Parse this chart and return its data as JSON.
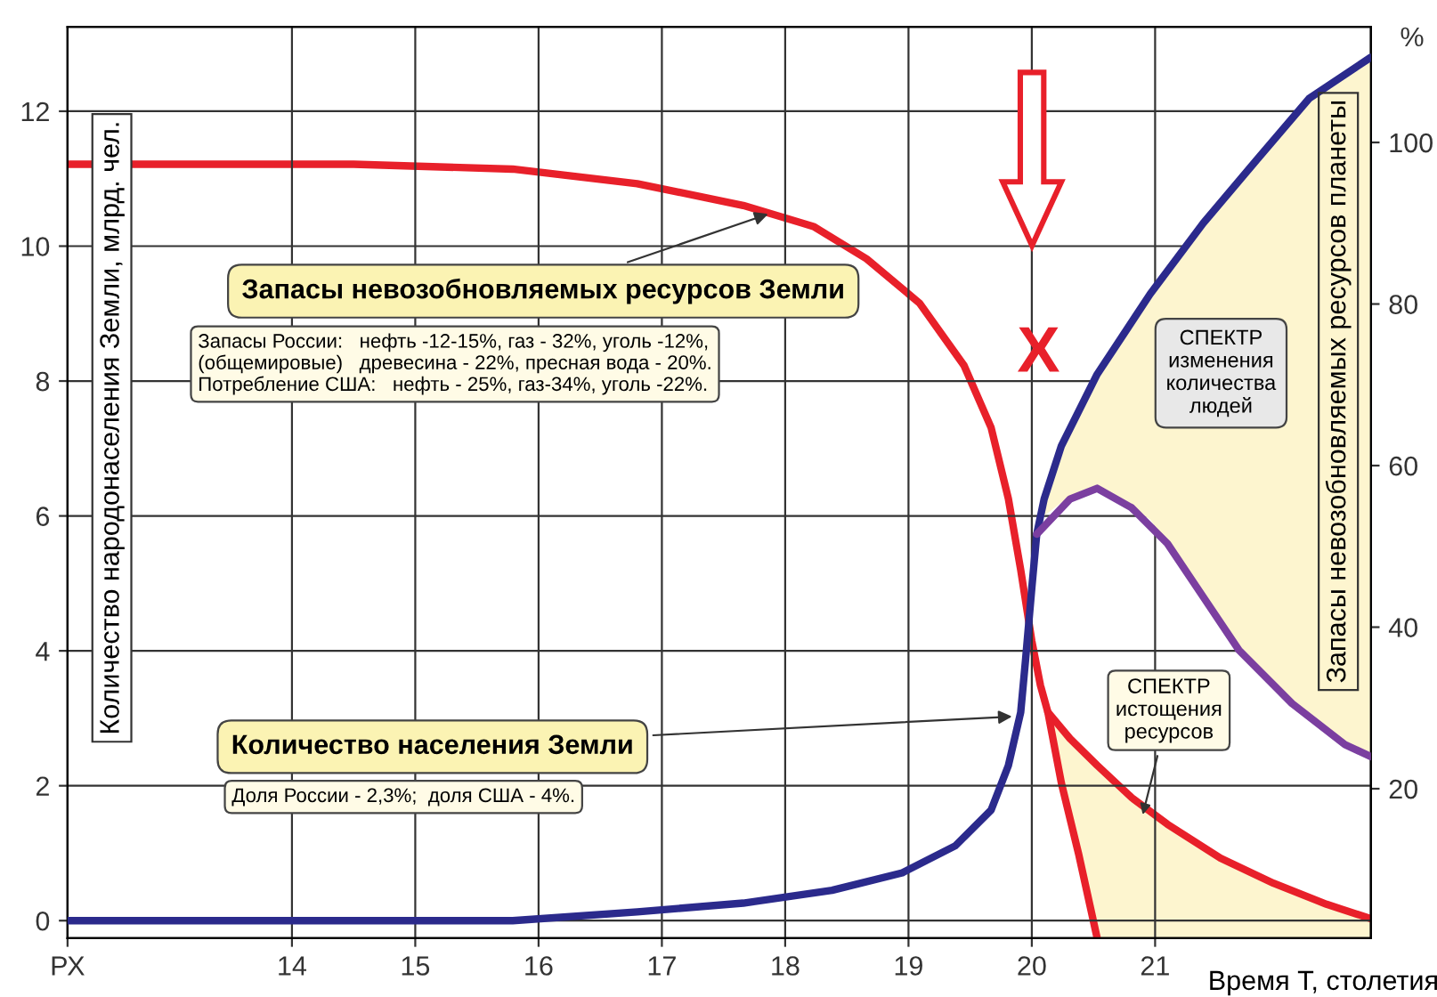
{
  "chart_data": {
    "type": "line",
    "xlabel": "Время Т, столетия",
    "ylabel": "Количество народонаселения Земли, млрд. чел.",
    "y2label": "Запасы невозобновляемых ресурсов планеты",
    "xlim": [
      12.18,
      22.75
    ],
    "xticks": [
      {
        "value": 12.18,
        "label": "РХ"
      },
      14,
      15,
      16,
      17,
      18,
      19,
      20,
      21
    ],
    "ylim": [
      -0.26,
      13.25
    ],
    "yticks": [
      0,
      2,
      4,
      6,
      8,
      10,
      12
    ],
    "y2lim": [
      1.5,
      114.3
    ],
    "y2ticks": [
      20,
      40,
      60,
      80,
      100
    ],
    "grid": true,
    "marker": "none",
    "line_style": "solid",
    "series": [
      {
        "color": "#2b2a8c",
        "x": [
          12.18,
          15.79,
          16.8,
          17.66,
          18.38,
          18.95,
          19.38,
          19.67,
          19.81,
          19.91,
          19.95,
          20.0,
          20.04,
          20.1,
          20.24,
          20.53,
          20.96,
          21.39,
          21.82,
          22.25,
          22.75
        ],
        "values": [
          0,
          0,
          0.13,
          0.26,
          0.45,
          0.71,
          1.11,
          1.64,
          2.3,
          3.09,
          3.88,
          4.93,
          5.73,
          6.25,
          7.04,
          8.1,
          9.29,
          10.34,
          11.27,
          12.19,
          12.8
        ],
        "lower": [
          null,
          null,
          null,
          null,
          null,
          null,
          null,
          null,
          null,
          null,
          null,
          null,
          5.73,
          6.0,
          6.2,
          6.41,
          5.95,
          4.8,
          3.75,
          3.0,
          2.43
        ],
        "upper": [
          null,
          null,
          null,
          null,
          null,
          null,
          null,
          null,
          null,
          null,
          null,
          null,
          5.73,
          6.25,
          7.04,
          8.1,
          9.29,
          10.34,
          11.27,
          12.19,
          12.8
        ]
      },
      {
        "color": "#7b3fa0",
        "x": [
          20.04,
          20.31,
          20.53,
          20.81,
          21.1,
          21.39,
          21.68,
          22.11,
          22.54,
          22.75
        ],
        "values": [
          5.73,
          6.25,
          6.41,
          6.12,
          5.59,
          4.8,
          4.01,
          3.22,
          2.61,
          2.43
        ]
      },
      {
        "axis": "y2",
        "color": "#e8202a",
        "x": [
          12.18,
          14.5,
          15.79,
          16.8,
          17.66,
          18.23,
          18.66,
          19.09,
          19.45,
          19.67,
          19.81,
          19.91,
          20.0,
          20.07,
          20.13,
          20.31,
          20.53,
          20.81,
          21.1,
          21.53,
          21.96,
          22.39,
          22.75
        ],
        "values": [
          97.3,
          97.3,
          96.7,
          94.9,
          92.2,
          89.6,
          85.6,
          80.1,
          72.4,
          64.7,
          55.9,
          47.1,
          38.3,
          32.8,
          29.5,
          26.2,
          22.9,
          18.9,
          15.6,
          11.4,
          8.3,
          5.7,
          3.9
        ],
        "lower": [
          null,
          null,
          null,
          null,
          null,
          null,
          null,
          null,
          null,
          null,
          null,
          null,
          null,
          null,
          29.5,
          16.3,
          1.5,
          1.5,
          1.5,
          1.5,
          1.5,
          1.5,
          1.5
        ],
        "upper": [
          null,
          null,
          null,
          null,
          null,
          null,
          null,
          null,
          null,
          null,
          null,
          null,
          null,
          null,
          29.5,
          26.2,
          22.9,
          18.9,
          15.6,
          11.4,
          8.3,
          5.7,
          3.9
        ]
      },
      {
        "axis": "y2",
        "color": "#e8202a",
        "x": [
          20.13,
          20.24,
          20.38,
          20.53
        ],
        "values": [
          29.5,
          20.7,
          11.9,
          1.5
        ]
      }
    ],
    "annotations": [
      {
        "text": "Запасы невозобновляемых ресурсов Земли",
        "x": 17.9,
        "y": 10.5
      },
      "Запасы России:   нефть -12-15%, газ - 32%, уголь -12%,\n(общемировые)   древесина - 22%, пресная вода - 20%.\nПотребление США:   нефть - 25%, газ-34%, уголь -22%.",
      {
        "text": "Количество населения Земли",
        "x": 19.88,
        "y": 3.03
      },
      "Доля России - 2,3%;  доля США - 4%.",
      "СПЕКТР\nизменения\nколичества\nлюдей",
      {
        "text": "СПЕКТР\nистощения\nресурсов",
        "x": 20.89,
        "y": 1.5
      },
      "X",
      "%"
    ]
  }
}
